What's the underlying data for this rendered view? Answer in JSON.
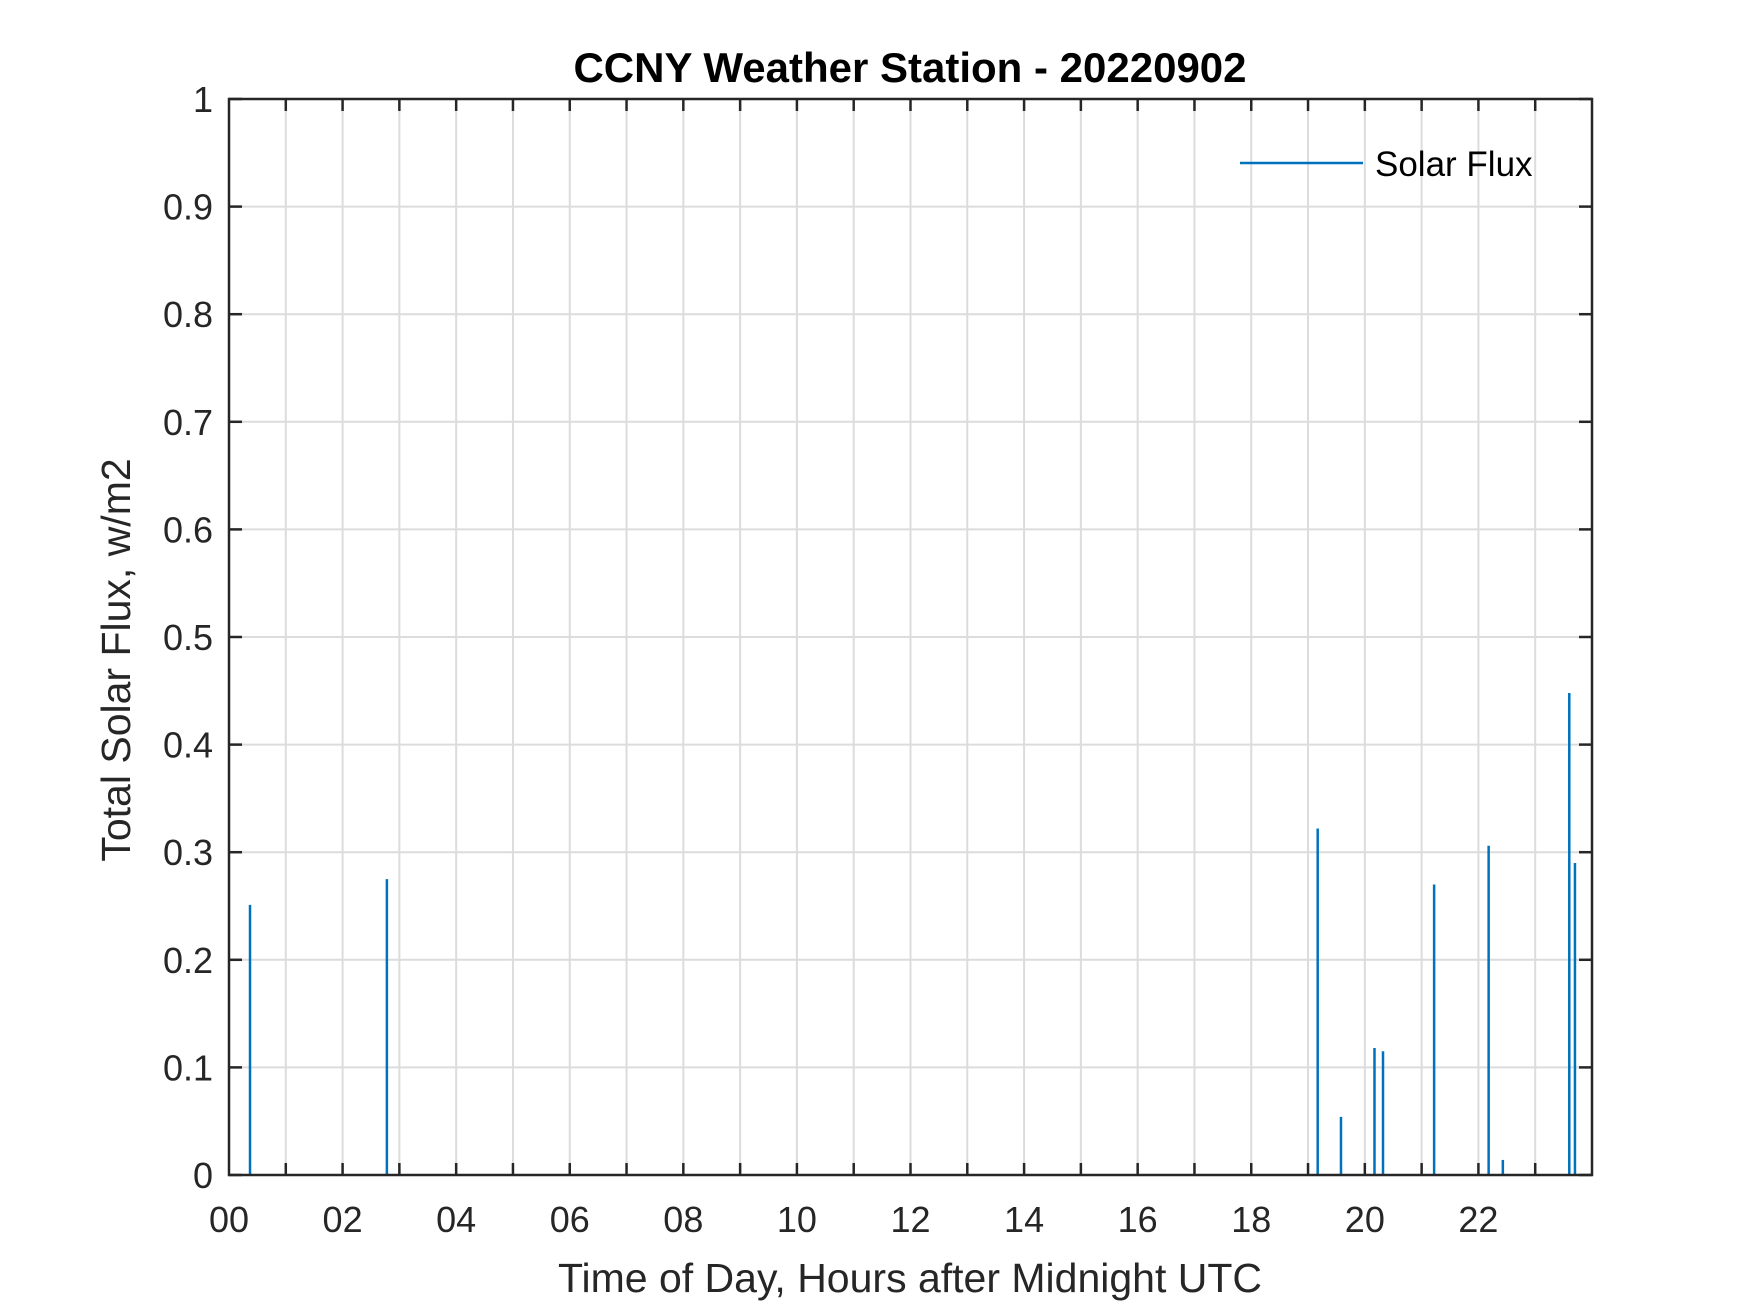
{
  "chart_data": {
    "type": "bar",
    "title": "CCNY Weather Station - 20220902",
    "xlabel": "Time of Day, Hours after Midnight UTC",
    "ylabel": "Total Solar Flux, w/m2",
    "xlim": [
      0,
      24
    ],
    "ylim": [
      0,
      1
    ],
    "xticks": [
      0,
      2,
      4,
      6,
      8,
      10,
      12,
      14,
      16,
      18,
      20,
      22
    ],
    "xtick_labels": [
      "00",
      "02",
      "04",
      "06",
      "08",
      "10",
      "12",
      "14",
      "16",
      "18",
      "20",
      "22"
    ],
    "yticks": [
      0,
      0.1,
      0.2,
      0.3,
      0.4,
      0.5,
      0.6,
      0.7,
      0.8,
      0.9,
      1
    ],
    "ytick_labels": [
      "0",
      "0.1",
      "0.2",
      "0.3",
      "0.4",
      "0.5",
      "0.6",
      "0.7",
      "0.8",
      "0.9",
      "1"
    ],
    "grid": true,
    "legend_position": "top-right",
    "series": [
      {
        "name": "Solar Flux",
        "color": "#0072BD",
        "x": [
          0.37,
          2.78,
          19.17,
          19.58,
          20.17,
          20.32,
          21.22,
          22.18,
          22.43,
          23.6,
          23.7
        ],
        "values": [
          0.251,
          0.275,
          0.322,
          0.054,
          0.118,
          0.115,
          0.27,
          0.306,
          0.014,
          0.448,
          0.29
        ]
      }
    ]
  }
}
